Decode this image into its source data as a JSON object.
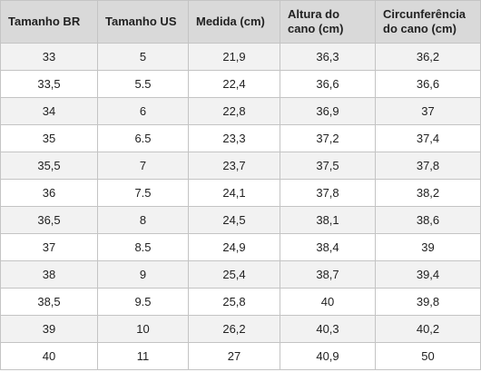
{
  "table": {
    "headers": [
      [
        "Tamanho BR"
      ],
      [
        "Tamanho US"
      ],
      [
        "Medida (cm)"
      ],
      [
        "Altura do",
        "cano (cm)"
      ],
      [
        "Circunferência",
        "do cano (cm)"
      ]
    ],
    "rows": [
      [
        "33",
        "5",
        "21,9",
        "36,3",
        "36,2"
      ],
      [
        "33,5",
        "5.5",
        "22,4",
        "36,6",
        "36,6"
      ],
      [
        "34",
        "6",
        "22,8",
        "36,9",
        "37"
      ],
      [
        "35",
        "6.5",
        "23,3",
        "37,2",
        "37,4"
      ],
      [
        "35,5",
        "7",
        "23,7",
        "37,5",
        "37,8"
      ],
      [
        "36",
        "7.5",
        "24,1",
        "37,8",
        "38,2"
      ],
      [
        "36,5",
        "8",
        "24,5",
        "38,1",
        "38,6"
      ],
      [
        "37",
        "8.5",
        "24,9",
        "38,4",
        "39"
      ],
      [
        "38",
        "9",
        "25,4",
        "38,7",
        "39,4"
      ],
      [
        "38,5",
        "9.5",
        "25,8",
        "40",
        "39,8"
      ],
      [
        "39",
        "10",
        "26,2",
        "40,3",
        "40,2"
      ],
      [
        "40",
        "11",
        "27",
        "40,9",
        "50"
      ]
    ]
  }
}
